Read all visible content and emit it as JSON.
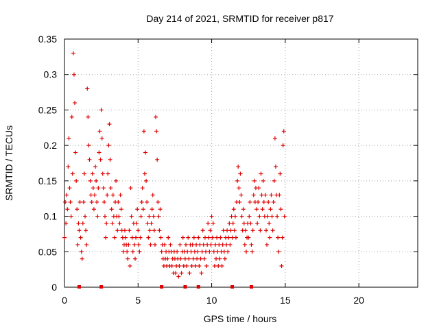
{
  "chart_data": {
    "type": "scatter",
    "title": "Day 214 of 2021, SRMTID for receiver p817",
    "xlabel": "GPS time / hours",
    "ylabel": "SRMTID / TECUs",
    "xlim": [
      0,
      24
    ],
    "ylim": [
      0,
      0.35
    ],
    "x_ticks": [
      0,
      5,
      10,
      15,
      20
    ],
    "x_tick_labels": [
      "0",
      "5",
      "10",
      "15",
      "20"
    ],
    "y_ticks": [
      0,
      0.05,
      0.1,
      0.15,
      0.2,
      0.25,
      0.3,
      0.35
    ],
    "y_tick_labels": [
      "0",
      "0.05",
      "0.1",
      "0.15",
      "0.2",
      "0.25",
      "0.3",
      "0.35"
    ],
    "grid": true,
    "marker": "+",
    "marker_color": "#e00000",
    "data_gap_markers_x": [
      1.0,
      2.5,
      6.6,
      8.2,
      9.1,
      11.4,
      12.7
    ],
    "series": [
      {
        "name": "SRMTID",
        "points": [
          [
            0.0,
            0.07
          ],
          [
            0.05,
            0.12
          ],
          [
            0.1,
            0.09
          ],
          [
            0.15,
            0.13
          ],
          [
            0.2,
            0.11
          ],
          [
            0.25,
            0.17
          ],
          [
            0.3,
            0.21
          ],
          [
            0.35,
            0.14
          ],
          [
            0.4,
            0.12
          ],
          [
            0.45,
            0.1
          ],
          [
            0.5,
            0.24
          ],
          [
            0.55,
            0.16
          ],
          [
            0.6,
            0.33
          ],
          [
            0.65,
            0.3
          ],
          [
            0.7,
            0.26
          ],
          [
            0.75,
            0.19
          ],
          [
            0.8,
            0.15
          ],
          [
            0.85,
            0.11
          ],
          [
            0.9,
            0.06
          ],
          [
            0.95,
            0.09
          ],
          [
            1.0,
            0.08
          ],
          [
            1.05,
            0.12
          ],
          [
            1.1,
            0.07
          ],
          [
            1.15,
            0.05
          ],
          [
            1.2,
            0.04
          ],
          [
            1.25,
            0.09
          ],
          [
            1.3,
            0.12
          ],
          [
            1.35,
            0.16
          ],
          [
            1.4,
            0.1
          ],
          [
            1.45,
            0.08
          ],
          [
            1.5,
            0.06
          ],
          [
            1.55,
            0.28
          ],
          [
            1.6,
            0.24
          ],
          [
            1.65,
            0.2
          ],
          [
            1.7,
            0.18
          ],
          [
            1.75,
            0.15
          ],
          [
            1.8,
            0.13
          ],
          [
            1.85,
            0.12
          ],
          [
            1.9,
            0.16
          ],
          [
            1.95,
            0.14
          ],
          [
            2.0,
            0.11
          ],
          [
            2.05,
            0.13
          ],
          [
            2.1,
            0.17
          ],
          [
            2.15,
            0.15
          ],
          [
            2.2,
            0.12
          ],
          [
            2.25,
            0.1
          ],
          [
            2.3,
            0.14
          ],
          [
            2.35,
            0.19
          ],
          [
            2.4,
            0.22
          ],
          [
            2.45,
            0.18
          ],
          [
            2.5,
            0.25
          ],
          [
            2.55,
            0.21
          ],
          [
            2.6,
            0.16
          ],
          [
            2.65,
            0.14
          ],
          [
            2.7,
            0.12
          ],
          [
            2.75,
            0.1
          ],
          [
            2.8,
            0.07
          ],
          [
            2.85,
            0.09
          ],
          [
            2.9,
            0.13
          ],
          [
            2.95,
            0.16
          ],
          [
            3.0,
            0.2
          ],
          [
            3.05,
            0.23
          ],
          [
            3.1,
            0.18
          ],
          [
            3.15,
            0.14
          ],
          [
            3.2,
            0.11
          ],
          [
            3.25,
            0.09
          ],
          [
            3.3,
            0.13
          ],
          [
            3.35,
            0.1
          ],
          [
            3.4,
            0.07
          ],
          [
            3.45,
            0.12
          ],
          [
            3.5,
            0.15
          ],
          [
            3.55,
            0.1
          ],
          [
            3.6,
            0.08
          ],
          [
            3.65,
            0.12
          ],
          [
            3.7,
            0.1
          ],
          [
            3.75,
            0.09
          ],
          [
            3.8,
            0.13
          ],
          [
            3.85,
            0.11
          ],
          [
            3.9,
            0.08
          ],
          [
            3.95,
            0.07
          ],
          [
            4.0,
            0.05
          ],
          [
            4.05,
            0.06
          ],
          [
            4.1,
            0.08
          ],
          [
            4.15,
            0.07
          ],
          [
            4.2,
            0.06
          ],
          [
            4.25,
            0.05
          ],
          [
            4.3,
            0.04
          ],
          [
            4.35,
            0.06
          ],
          [
            4.4,
            0.08
          ],
          [
            4.45,
            0.03
          ],
          [
            4.5,
            0.14
          ],
          [
            4.55,
            0.1
          ],
          [
            4.6,
            0.07
          ],
          [
            4.65,
            0.05
          ],
          [
            4.7,
            0.09
          ],
          [
            4.75,
            0.06
          ],
          [
            4.8,
            0.04
          ],
          [
            4.85,
            0.07
          ],
          [
            4.9,
            0.09
          ],
          [
            4.95,
            0.11
          ],
          [
            5.0,
            0.08
          ],
          [
            5.05,
            0.06
          ],
          [
            5.1,
            0.05
          ],
          [
            5.15,
            0.07
          ],
          [
            5.2,
            0.1
          ],
          [
            5.25,
            0.12
          ],
          [
            5.3,
            0.14
          ],
          [
            5.35,
            0.11
          ],
          [
            5.4,
            0.22
          ],
          [
            5.45,
            0.16
          ],
          [
            5.5,
            0.19
          ],
          [
            5.55,
            0.15
          ],
          [
            5.6,
            0.12
          ],
          [
            5.65,
            0.09
          ],
          [
            5.7,
            0.07
          ],
          [
            5.75,
            0.1
          ],
          [
            5.8,
            0.08
          ],
          [
            5.85,
            0.06
          ],
          [
            5.9,
            0.09
          ],
          [
            5.95,
            0.11
          ],
          [
            6.0,
            0.13
          ],
          [
            6.05,
            0.1
          ],
          [
            6.1,
            0.08
          ],
          [
            6.15,
            0.06
          ],
          [
            6.2,
            0.24
          ],
          [
            6.25,
            0.22
          ],
          [
            6.3,
            0.18
          ],
          [
            6.35,
            0.12
          ],
          [
            6.4,
            0.1
          ],
          [
            6.45,
            0.08
          ],
          [
            6.5,
            0.11
          ],
          [
            6.55,
            0.07
          ],
          [
            6.6,
            0.05
          ],
          [
            6.65,
            0.06
          ],
          [
            6.7,
            0.04
          ],
          [
            6.75,
            0.03
          ],
          [
            6.8,
            0.06
          ],
          [
            6.85,
            0.04
          ],
          [
            6.9,
            0.05
          ],
          [
            6.95,
            0.03
          ],
          [
            7.0,
            0.04
          ],
          [
            7.05,
            0.07
          ],
          [
            7.1,
            0.05
          ],
          [
            7.15,
            0.03
          ],
          [
            7.2,
            0.06
          ],
          [
            7.25,
            0.05
          ],
          [
            7.3,
            0.03
          ],
          [
            7.35,
            0.04
          ],
          [
            7.4,
            0.02
          ],
          [
            7.45,
            0.05
          ],
          [
            7.5,
            0.04
          ],
          [
            7.55,
            0.02
          ],
          [
            7.6,
            0.03
          ],
          [
            7.65,
            0.05
          ],
          [
            7.7,
            0.04
          ],
          [
            7.75,
            0.015
          ],
          [
            7.8,
            0.03
          ],
          [
            7.85,
            0.06
          ],
          [
            7.9,
            0.04
          ],
          [
            7.95,
            0.02
          ],
          [
            8.0,
            0.05
          ],
          [
            8.05,
            0.07
          ],
          [
            8.1,
            0.03
          ],
          [
            8.15,
            0.05
          ],
          [
            8.2,
            0.04
          ],
          [
            8.25,
            0.06
          ],
          [
            8.3,
            0.03
          ],
          [
            8.35,
            0.05
          ],
          [
            8.4,
            0.07
          ],
          [
            8.45,
            0.04
          ],
          [
            8.5,
            0.02
          ],
          [
            8.55,
            0.06
          ],
          [
            8.6,
            0.05
          ],
          [
            8.65,
            0.03
          ],
          [
            8.7,
            0.06
          ],
          [
            8.75,
            0.04
          ],
          [
            8.8,
            0.07
          ],
          [
            8.85,
            0.05
          ],
          [
            8.9,
            0.03
          ],
          [
            8.95,
            0.06
          ],
          [
            9.0,
            0.04
          ],
          [
            9.05,
            0.05
          ],
          [
            9.1,
            0.07
          ],
          [
            9.15,
            0.03
          ],
          [
            9.2,
            0.06
          ],
          [
            9.25,
            0.04
          ],
          [
            9.3,
            0.02
          ],
          [
            9.35,
            0.05
          ],
          [
            9.4,
            0.08
          ],
          [
            9.45,
            0.06
          ],
          [
            9.5,
            0.04
          ],
          [
            9.55,
            0.07
          ],
          [
            9.6,
            0.05
          ],
          [
            9.65,
            0.03
          ],
          [
            9.7,
            0.06
          ],
          [
            9.75,
            0.09
          ],
          [
            9.8,
            0.07
          ],
          [
            9.85,
            0.05
          ],
          [
            9.9,
            0.08
          ],
          [
            9.95,
            0.06
          ],
          [
            10.0,
            0.1
          ],
          [
            10.05,
            0.07
          ],
          [
            10.1,
            0.09
          ],
          [
            10.15,
            0.05
          ],
          [
            10.2,
            0.03
          ],
          [
            10.25,
            0.06
          ],
          [
            10.3,
            0.04
          ],
          [
            10.35,
            0.07
          ],
          [
            10.4,
            0.05
          ],
          [
            10.45,
            0.03
          ],
          [
            10.5,
            0.06
          ],
          [
            10.55,
            0.04
          ],
          [
            10.6,
            0.07
          ],
          [
            10.65,
            0.05
          ],
          [
            10.7,
            0.03
          ],
          [
            10.75,
            0.06
          ],
          [
            10.8,
            0.08
          ],
          [
            10.85,
            0.05
          ],
          [
            10.9,
            0.04
          ],
          [
            10.95,
            0.07
          ],
          [
            11.0,
            0.06
          ],
          [
            11.05,
            0.08
          ],
          [
            11.1,
            0.05
          ],
          [
            11.15,
            0.07
          ],
          [
            11.2,
            0.09
          ],
          [
            11.25,
            0.06
          ],
          [
            11.3,
            0.08
          ],
          [
            11.35,
            0.1
          ],
          [
            11.4,
            0.07
          ],
          [
            11.45,
            0.09
          ],
          [
            11.5,
            0.11
          ],
          [
            11.55,
            0.08
          ],
          [
            11.6,
            0.1
          ],
          [
            11.65,
            0.07
          ],
          [
            11.7,
            0.12
          ],
          [
            11.75,
            0.15
          ],
          [
            11.8,
            0.17
          ],
          [
            11.85,
            0.14
          ],
          [
            11.9,
            0.12
          ],
          [
            11.95,
            0.16
          ],
          [
            12.0,
            0.13
          ],
          [
            12.05,
            0.1
          ],
          [
            12.1,
            0.08
          ],
          [
            12.15,
            0.11
          ],
          [
            12.2,
            0.09
          ],
          [
            12.25,
            0.06
          ],
          [
            12.3,
            0.08
          ],
          [
            12.35,
            0.05
          ],
          [
            12.4,
            0.07
          ],
          [
            12.45,
            0.09
          ],
          [
            12.5,
            0.07
          ],
          [
            12.55,
            0.1
          ],
          [
            12.6,
            0.12
          ],
          [
            12.65,
            0.09
          ],
          [
            12.7,
            0.06
          ],
          [
            12.75,
            0.05
          ],
          [
            12.8,
            0.08
          ],
          [
            12.85,
            0.13
          ],
          [
            12.9,
            0.15
          ],
          [
            12.95,
            0.12
          ],
          [
            13.0,
            0.14
          ],
          [
            13.05,
            0.11
          ],
          [
            13.1,
            0.09
          ],
          [
            13.15,
            0.12
          ],
          [
            13.2,
            0.14
          ],
          [
            13.25,
            0.1
          ],
          [
            13.3,
            0.08
          ],
          [
            13.35,
            0.16
          ],
          [
            13.4,
            0.13
          ],
          [
            13.45,
            0.11
          ],
          [
            13.5,
            0.15
          ],
          [
            13.55,
            0.12
          ],
          [
            13.6,
            0.1
          ],
          [
            13.65,
            0.13
          ],
          [
            13.7,
            0.08
          ],
          [
            13.75,
            0.06
          ],
          [
            13.8,
            0.1
          ],
          [
            13.85,
            0.12
          ],
          [
            13.9,
            0.09
          ],
          [
            13.95,
            0.07
          ],
          [
            14.0,
            0.11
          ],
          [
            14.05,
            0.13
          ],
          [
            14.1,
            0.1
          ],
          [
            14.15,
            0.08
          ],
          [
            14.2,
            0.12
          ],
          [
            14.25,
            0.15
          ],
          [
            14.3,
            0.21
          ],
          [
            14.35,
            0.17
          ],
          [
            14.4,
            0.13
          ],
          [
            14.45,
            0.1
          ],
          [
            14.5,
            0.07
          ],
          [
            14.55,
            0.05
          ],
          [
            14.6,
            0.13
          ],
          [
            14.65,
            0.16
          ],
          [
            14.7,
            0.11
          ],
          [
            14.75,
            0.03
          ],
          [
            14.8,
            0.07
          ],
          [
            14.85,
            0.2
          ],
          [
            14.9,
            0.22
          ],
          [
            14.95,
            0.1
          ]
        ]
      }
    ]
  }
}
